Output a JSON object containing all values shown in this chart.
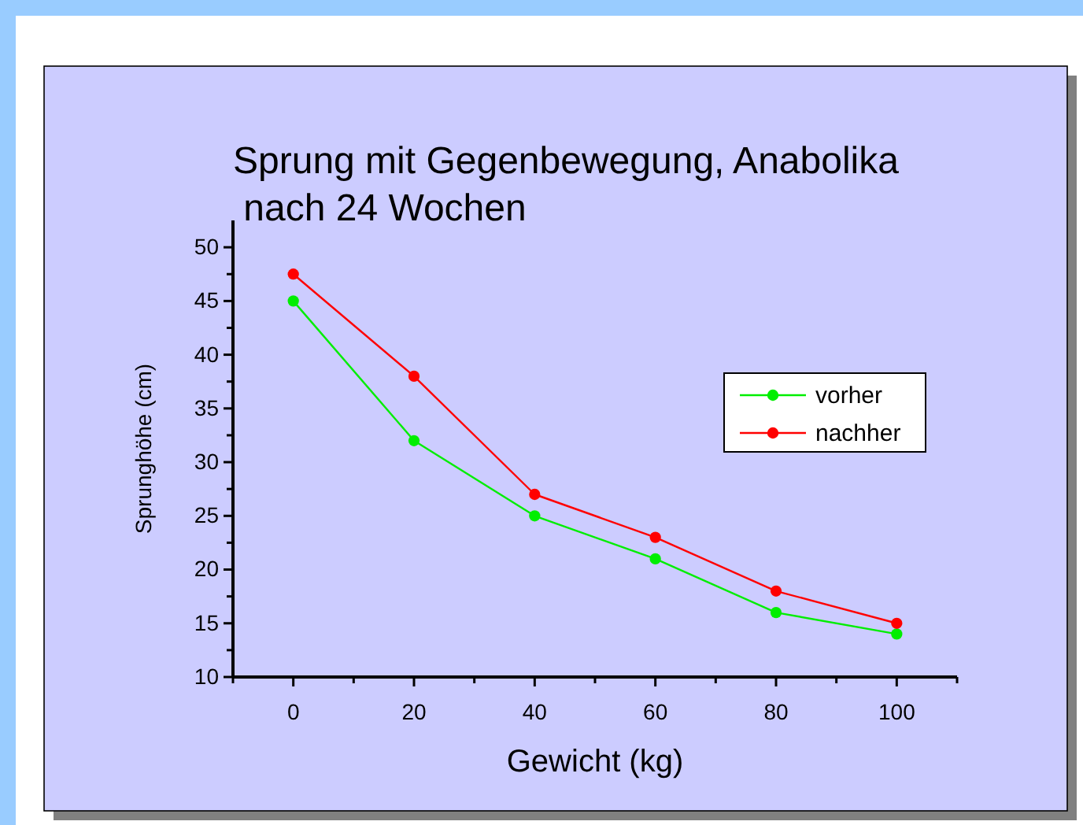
{
  "chart_data": {
    "type": "line",
    "title": "Sprung mit Gegenbewegung, Anabolika\n nach 24 Wochen",
    "xlabel": "Gewicht (kg)",
    "ylabel": "Sprunghöhe (cm)",
    "x": [
      0,
      20,
      40,
      60,
      80,
      100
    ],
    "series": [
      {
        "name": "vorher",
        "color": "#00ee00",
        "values": [
          45,
          32,
          25,
          21,
          16,
          14
        ]
      },
      {
        "name": "nachher",
        "color": "#ff0000",
        "values": [
          47.5,
          38,
          27,
          23,
          18,
          15
        ]
      }
    ],
    "xlim": [
      -10,
      110
    ],
    "xticks": [
      {
        "value": -10,
        "label": null
      },
      0,
      {
        "value": 10,
        "label": null
      },
      20,
      {
        "value": 30,
        "label": null
      },
      40,
      {
        "value": 50,
        "label": null
      },
      60,
      {
        "value": 70,
        "label": null
      },
      80,
      {
        "value": 90,
        "label": null
      },
      100,
      {
        "value": 110,
        "label": null
      }
    ],
    "ylim": [
      10,
      52.5
    ],
    "yticks": [
      10,
      {
        "value": 12.5,
        "label": null
      },
      15,
      {
        "value": 17.5,
        "label": null
      },
      20,
      {
        "value": 22.5,
        "label": null
      },
      25,
      {
        "value": 27.5,
        "label": null
      },
      30,
      {
        "value": 32.5,
        "label": null
      },
      35,
      {
        "value": 37.5,
        "label": null
      },
      40,
      {
        "value": 42.5,
        "label": null
      },
      45,
      {
        "value": 47.5,
        "label": null
      },
      50
    ],
    "grid": false,
    "legend": "right",
    "marker": "circle",
    "line_style": "solid"
  }
}
